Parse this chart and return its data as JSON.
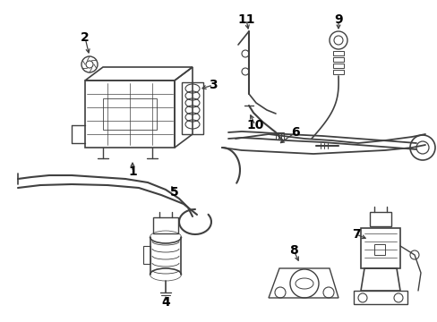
{
  "background_color": "#ffffff",
  "line_color": "#404040",
  "label_color": "#000000",
  "label_fontsize": 10,
  "figsize": [
    4.89,
    3.6
  ],
  "dpi": 100,
  "xlim": [
    0,
    489
  ],
  "ylim": [
    0,
    360
  ]
}
